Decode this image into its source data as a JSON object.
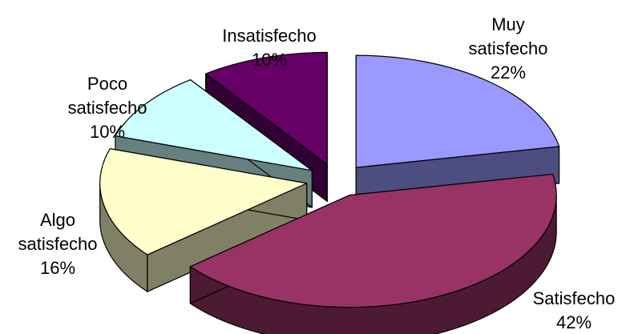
{
  "chart_data": {
    "type": "pie",
    "style": "3d-exploded",
    "legend": "none",
    "slices": [
      {
        "name": "Muy satisfecho",
        "label_lines": [
          "Muy",
          "satisfecho"
        ],
        "value_label": "22%",
        "value": 22,
        "top_color": "#9999ff",
        "side_color": "#4d4d80"
      },
      {
        "name": "Satisfecho",
        "label_lines": [
          "Satisfecho"
        ],
        "value_label": "42%",
        "value": 42,
        "top_color": "#993366",
        "side_color": "#4d1a33"
      },
      {
        "name": "Algo satisfecho",
        "label_lines": [
          "Algo",
          "satisfecho"
        ],
        "value_label": "16%",
        "value": 16,
        "top_color": "#ffffcc",
        "side_color": "#808066"
      },
      {
        "name": "Poco satisfecho",
        "label_lines": [
          "Poco",
          "satisfecho"
        ],
        "value_label": "10%",
        "value": 10,
        "top_color": "#ccffff",
        "side_color": "#668080"
      },
      {
        "name": "Insatisfecho",
        "label_lines": [
          "Insatisfecho"
        ],
        "value_label": "10%",
        "value": 10,
        "top_color": "#660066",
        "side_color": "#330033"
      }
    ]
  }
}
